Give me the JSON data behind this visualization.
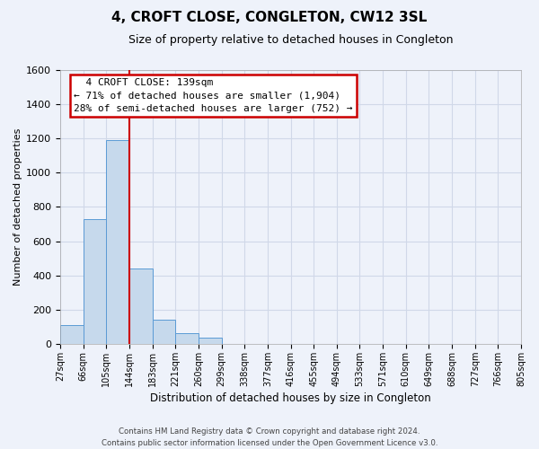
{
  "title": "4, CROFT CLOSE, CONGLETON, CW12 3SL",
  "subtitle": "Size of property relative to detached houses in Congleton",
  "xlabel": "Distribution of detached houses by size in Congleton",
  "ylabel": "Number of detached properties",
  "bin_labels": [
    "27sqm",
    "66sqm",
    "105sqm",
    "144sqm",
    "183sqm",
    "221sqm",
    "260sqm",
    "299sqm",
    "338sqm",
    "377sqm",
    "416sqm",
    "455sqm",
    "494sqm",
    "533sqm",
    "571sqm",
    "610sqm",
    "649sqm",
    "688sqm",
    "727sqm",
    "766sqm",
    "805sqm"
  ],
  "bar_heights": [
    110,
    730,
    1190,
    440,
    140,
    60,
    35,
    0,
    0,
    0,
    0,
    0,
    0,
    0,
    0,
    0,
    0,
    0,
    0,
    0,
    0
  ],
  "bar_color": "#c6d9ec",
  "bar_edge_color": "#5b9bd5",
  "ylim": [
    0,
    1600
  ],
  "yticks": [
    0,
    200,
    400,
    600,
    800,
    1000,
    1200,
    1400,
    1600
  ],
  "vline_x": 3.0,
  "vline_color": "#cc0000",
  "annotation_title": "4 CROFT CLOSE: 139sqm",
  "annotation_line1": "← 71% of detached houses are smaller (1,904)",
  "annotation_line2": "28% of semi-detached houses are larger (752) →",
  "annotation_box_color": "#ffffff",
  "annotation_box_edge": "#cc0000",
  "footer_line1": "Contains HM Land Registry data © Crown copyright and database right 2024.",
  "footer_line2": "Contains public sector information licensed under the Open Government Licence v3.0.",
  "background_color": "#eef2fa",
  "plot_bg_color": "#eef2fa",
  "grid_color": "#d0d8e8"
}
